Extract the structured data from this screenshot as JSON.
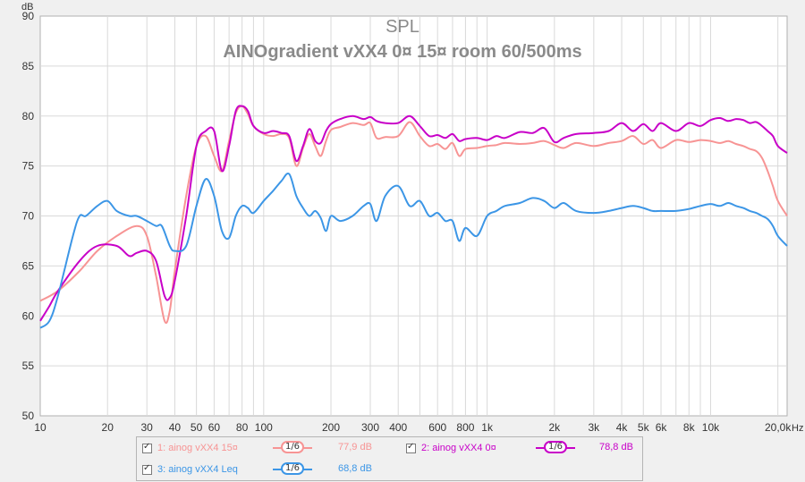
{
  "chart_data": {
    "type": "line",
    "title": "SPL",
    "subtitle": "AINOgradient vXX4 0¤ 15¤ room 60/500ms",
    "ylabel": "dB",
    "xlabel": "Hz",
    "x_scale": "log",
    "xlim": [
      10,
      22000
    ],
    "ylim": [
      50,
      90
    ],
    "grid": true,
    "y_ticks": [
      50,
      55,
      60,
      65,
      70,
      75,
      80,
      85,
      90
    ],
    "x_ticks": [
      {
        "v": 10,
        "label": "10"
      },
      {
        "v": 20,
        "label": "20"
      },
      {
        "v": 30,
        "label": "30"
      },
      {
        "v": 40,
        "label": "40"
      },
      {
        "v": 50,
        "label": "50"
      },
      {
        "v": 60,
        "label": "60"
      },
      {
        "v": 80,
        "label": "80"
      },
      {
        "v": 100,
        "label": "100"
      },
      {
        "v": 200,
        "label": "200"
      },
      {
        "v": 300,
        "label": "300"
      },
      {
        "v": 400,
        "label": "400"
      },
      {
        "v": 600,
        "label": "600"
      },
      {
        "v": 800,
        "label": "800"
      },
      {
        "v": 1000,
        "label": "1k"
      },
      {
        "v": 2000,
        "label": "2k"
      },
      {
        "v": 3000,
        "label": "3k"
      },
      {
        "v": 4000,
        "label": "4k"
      },
      {
        "v": 5000,
        "label": "5k"
      },
      {
        "v": 6000,
        "label": "6k"
      },
      {
        "v": 8000,
        "label": "8k"
      },
      {
        "v": 10000,
        "label": "10k"
      },
      {
        "v": 20000,
        "label": "20,0k"
      }
    ],
    "x_minor": [
      70,
      90,
      500,
      700,
      900,
      7000,
      9000
    ],
    "series": [
      {
        "name": "1: ainog vXX4 15¤",
        "color": "#f79494",
        "smoothing": "1/6",
        "avg_label": "77,9 dB",
        "x": [
          10,
          12,
          15,
          18,
          22,
          27,
          30,
          33,
          36,
          38,
          40,
          45,
          50,
          55,
          60,
          65,
          70,
          75,
          80,
          85,
          90,
          100,
          110,
          120,
          130,
          140,
          150,
          160,
          170,
          180,
          190,
          200,
          220,
          250,
          280,
          300,
          320,
          350,
          400,
          450,
          500,
          550,
          600,
          650,
          700,
          750,
          800,
          900,
          1000,
          1100,
          1200,
          1400,
          1600,
          1800,
          2000,
          2200,
          2500,
          3000,
          3500,
          4000,
          4500,
          5000,
          5500,
          6000,
          7000,
          8000,
          9000,
          10000,
          11000,
          12000,
          13000,
          14000,
          15000,
          16000,
          17000,
          18000,
          19000,
          20000,
          22000
        ],
        "y": [
          61.5,
          62.5,
          64.5,
          66.5,
          68.0,
          69.0,
          68.0,
          64.0,
          59.5,
          60.5,
          64.5,
          72.0,
          77.0,
          78.0,
          76.0,
          74.5,
          77.5,
          80.3,
          81.0,
          80.2,
          79.0,
          78.2,
          78.0,
          78.2,
          77.8,
          75.0,
          76.8,
          78.2,
          77.0,
          76.0,
          77.5,
          78.6,
          78.9,
          79.3,
          79.1,
          79.3,
          77.8,
          77.9,
          78.0,
          79.4,
          78.0,
          77.0,
          77.2,
          76.7,
          77.3,
          76.0,
          76.7,
          76.8,
          77.0,
          77.1,
          77.3,
          77.2,
          77.3,
          77.5,
          77.1,
          76.8,
          77.3,
          77.0,
          77.3,
          77.5,
          78.0,
          77.2,
          77.6,
          76.8,
          77.6,
          77.4,
          77.6,
          77.5,
          77.3,
          77.5,
          77.2,
          77.0,
          76.7,
          76.5,
          75.8,
          74.5,
          73.0,
          71.5,
          70.0
        ]
      },
      {
        "name": "2: ainog vXX4 0¤",
        "color": "#c800c8",
        "smoothing": "1/6",
        "avg_label": "78,8 dB",
        "x": [
          10,
          11,
          12,
          15,
          18,
          22,
          25,
          27,
          30,
          33,
          36,
          38,
          40,
          45,
          50,
          55,
          60,
          65,
          70,
          75,
          80,
          85,
          90,
          100,
          110,
          120,
          130,
          140,
          150,
          160,
          170,
          180,
          190,
          200,
          220,
          250,
          280,
          300,
          320,
          350,
          400,
          450,
          500,
          550,
          600,
          650,
          700,
          750,
          800,
          900,
          1000,
          1100,
          1200,
          1400,
          1600,
          1800,
          2000,
          2200,
          2500,
          3000,
          3500,
          4000,
          4500,
          5000,
          5500,
          6000,
          7000,
          8000,
          9000,
          10000,
          11000,
          12000,
          13000,
          14000,
          15000,
          16000,
          17000,
          18000,
          19000,
          20000,
          22000
        ],
        "y": [
          59.5,
          61.0,
          62.5,
          65.5,
          67.0,
          67.0,
          66.0,
          66.3,
          66.5,
          65.5,
          62.0,
          61.8,
          63.5,
          70.0,
          77.0,
          78.5,
          78.5,
          74.5,
          77.0,
          80.5,
          81.0,
          80.5,
          79.0,
          78.3,
          78.5,
          78.3,
          78.0,
          75.5,
          77.0,
          78.7,
          77.5,
          77.3,
          78.5,
          79.2,
          79.7,
          80.0,
          79.7,
          79.9,
          79.5,
          79.3,
          79.3,
          80.0,
          79.0,
          78.0,
          78.1,
          77.8,
          78.2,
          77.5,
          77.7,
          77.8,
          77.6,
          78.0,
          77.8,
          78.4,
          78.3,
          78.8,
          77.4,
          77.8,
          78.2,
          78.3,
          78.5,
          79.3,
          78.5,
          79.2,
          78.5,
          79.3,
          78.5,
          79.3,
          79.0,
          79.6,
          79.8,
          79.5,
          79.7,
          79.6,
          79.3,
          79.4,
          79.0,
          78.5,
          78.0,
          77.0,
          76.3
        ]
      },
      {
        "name": "3: ainog vXX4 Leq",
        "color": "#3c96e6",
        "smoothing": "1/6",
        "avg_label": "68,8 dB",
        "x": [
          10,
          11,
          12,
          14,
          15,
          16,
          18,
          20,
          22,
          25,
          27,
          30,
          33,
          35,
          38,
          40,
          45,
          50,
          55,
          60,
          65,
          70,
          75,
          80,
          85,
          90,
          100,
          110,
          120,
          130,
          140,
          150,
          160,
          170,
          180,
          190,
          200,
          220,
          250,
          280,
          300,
          320,
          350,
          400,
          450,
          500,
          550,
          600,
          650,
          700,
          750,
          800,
          900,
          1000,
          1100,
          1200,
          1400,
          1600,
          1800,
          2000,
          2200,
          2500,
          3000,
          3500,
          4000,
          4500,
          5000,
          5500,
          6000,
          7000,
          8000,
          9000,
          10000,
          11000,
          12000,
          13000,
          14000,
          15000,
          16000,
          17000,
          18000,
          19000,
          20000,
          22000
        ],
        "y": [
          58.8,
          59.5,
          62.0,
          68.0,
          70.0,
          70.0,
          71.0,
          71.5,
          70.5,
          70.0,
          70.0,
          69.5,
          69.0,
          69.0,
          67.0,
          66.5,
          67.0,
          71.0,
          73.7,
          72.0,
          68.5,
          67.8,
          70.0,
          71.0,
          70.8,
          70.3,
          71.5,
          72.5,
          73.5,
          74.2,
          72.0,
          70.8,
          70.0,
          70.5,
          69.8,
          68.5,
          70.0,
          69.5,
          70.0,
          71.0,
          71.2,
          69.5,
          72.0,
          73.0,
          71.0,
          71.5,
          70.0,
          70.3,
          69.5,
          69.5,
          67.5,
          68.8,
          68.0,
          70.0,
          70.5,
          71.0,
          71.3,
          71.8,
          71.5,
          70.8,
          71.3,
          70.5,
          70.3,
          70.5,
          70.8,
          71.0,
          70.8,
          70.5,
          70.5,
          70.5,
          70.7,
          71.0,
          71.2,
          71.0,
          71.3,
          71.0,
          70.8,
          70.5,
          70.3,
          70.0,
          69.7,
          69.0,
          68.0,
          67.0
        ]
      }
    ],
    "legend_placement": "bottom-center"
  },
  "colors": {
    "background": "#f0f0f0",
    "plot_background": "#ffffff",
    "grid": "#d9d9d9"
  }
}
